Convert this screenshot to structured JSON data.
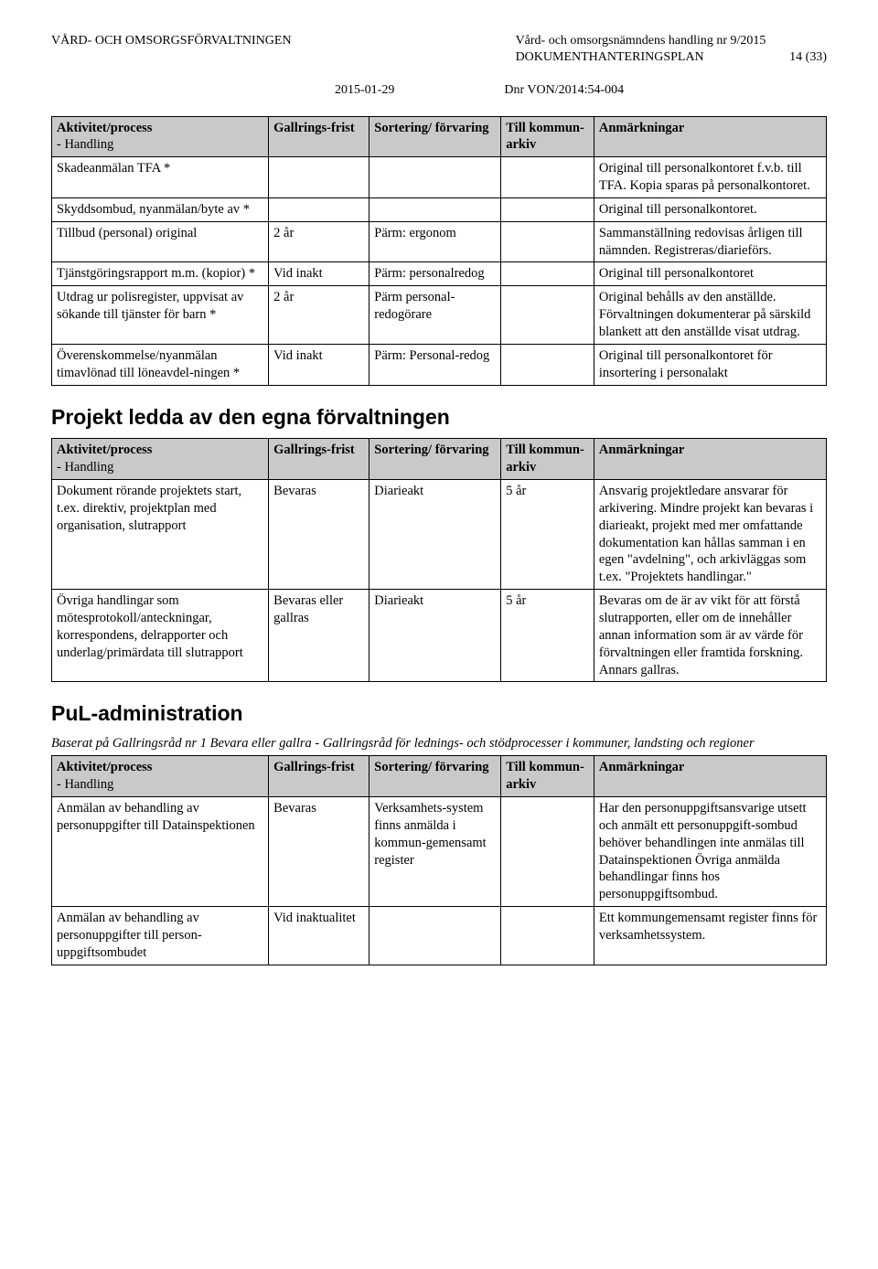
{
  "header": {
    "left": "VÅRD- OCH OMSORGSFÖRVALTNINGEN",
    "right_line1": "Vård- och omsorgsnämndens handling nr 9/2015",
    "right_line2a": "DOKUMENTHANTERINGSPLAN",
    "right_line2b": "14 (33)",
    "date": "2015-01-29",
    "dnr": "Dnr VON/2014:54-004"
  },
  "table_header": {
    "c1a": "Aktivitet/process",
    "c1b": "- Handling",
    "c2": "Gallrings-frist",
    "c3": "Sortering/ förvaring",
    "c4": "Till kommun-arkiv",
    "c5": "Anmärkningar"
  },
  "table1": {
    "rows": [
      {
        "c1": "Skadeanmälan TFA *",
        "c2": "",
        "c3": "",
        "c4": "",
        "c5": "Original till personalkontoret f.v.b. till TFA. Kopia sparas på personalkontoret."
      },
      {
        "c1": "Skyddsombud, nyanmälan/byte av *",
        "c2": "",
        "c3": "",
        "c4": "",
        "c5": "Original till personalkontoret."
      },
      {
        "c1": "Tillbud (personal) original",
        "c2": "2 år",
        "c3": "Pärm: ergonom",
        "c4": "",
        "c5": "Sammanställning redovisas årligen till nämnden. Registreras/diarieförs."
      },
      {
        "c1": "Tjänstgöringsrapport m.m. (kopior) *",
        "c2": "Vid inakt",
        "c3": "Pärm: personalredog",
        "c4": "",
        "c5": "Original till personalkontoret"
      },
      {
        "c1": "Utdrag ur polisregister, uppvisat av sökande till tjänster för barn *",
        "c2": "2 år",
        "c3": "Pärm personal-redogörare",
        "c4": "",
        "c5": "Original behålls av den anställde. Förvaltningen dokumenterar på särskild blankett att den anställde visat utdrag."
      },
      {
        "c1": "Överenskommelse/nyanmälan timavlönad till löneavdel-ningen *",
        "c2": "Vid inakt",
        "c3": "Pärm: Personal-redog",
        "c4": "",
        "c5": "Original till personalkontoret för insortering i personalakt"
      }
    ]
  },
  "section2_title": "Projekt ledda av den egna förvaltningen",
  "table2": {
    "rows": [
      {
        "c1": "Dokument rörande projektets start, t.ex. direktiv, projektplan med organisation, slutrapport",
        "c2": "Bevaras",
        "c3": "Diarieakt",
        "c4": "5 år",
        "c5": "Ansvarig projektledare ansvarar för arkivering. Mindre projekt kan bevaras i diarieakt, projekt med mer omfattande dokumentation kan hållas samman i en egen \"avdelning\", och arkivläggas som t.ex. \"Projektets handlingar.\""
      },
      {
        "c1": "Övriga handlingar som mötesprotokoll/anteckningar, korrespondens, delrapporter och underlag/primärdata till slutrapport",
        "c2": "Bevaras eller gallras",
        "c3": "Diarieakt",
        "c4": "5 år",
        "c5": "Bevaras om de är av vikt för att förstå slutrapporten, eller om de innehåller annan information som är av värde för förvaltningen eller framtida forskning. Annars gallras."
      }
    ]
  },
  "section3_title": "PuL-administration",
  "section3_intro": "Baserat på Gallringsråd nr 1 Bevara eller gallra - Gallringsråd för lednings- och stödprocesser i kommuner, landsting och regioner",
  "table3": {
    "rows": [
      {
        "c1": "Anmälan av behandling av personuppgifter till Datainspektionen",
        "c2": "Bevaras",
        "c3": "Verksamhets-system finns anmälda i kommun-gemensamt register",
        "c4": "",
        "c5": "Har den personuppgiftsansvarige utsett och anmält ett personuppgift-sombud behöver behandlingen inte anmälas till Datainspektionen Övriga anmälda behandlingar finns hos personuppgiftsombud."
      },
      {
        "c1": "Anmälan av behandling av personuppgifter till person-uppgiftsombudet",
        "c2": "Vid inaktualitet",
        "c3": "",
        "c4": "",
        "c5": "Ett kommungemensamt register finns för verksamhetssystem."
      }
    ]
  },
  "colors": {
    "header_bg": "#c9c9c9",
    "border": "#000000",
    "text": "#000000",
    "background": "#ffffff"
  }
}
